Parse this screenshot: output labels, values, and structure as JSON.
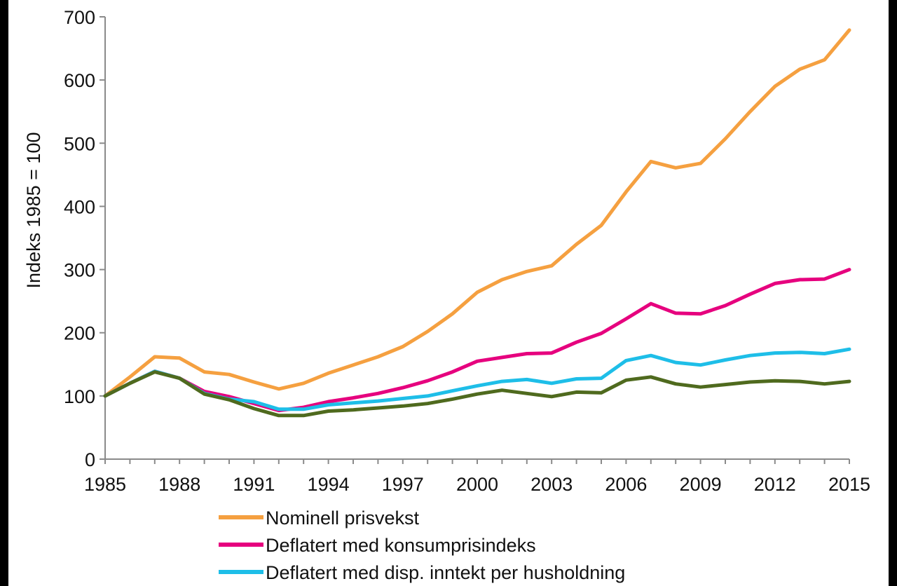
{
  "chart_data": {
    "type": "line",
    "title": "",
    "xlabel": "",
    "ylabel": "Indeks 1985 = 100",
    "ylim": [
      0,
      700
    ],
    "yticks": [
      0,
      100,
      200,
      300,
      400,
      500,
      600,
      700
    ],
    "xlim": [
      1985,
      2015
    ],
    "xticks": [
      1985,
      1988,
      1991,
      1994,
      1997,
      2000,
      2003,
      2006,
      2009,
      2012,
      2015
    ],
    "x": [
      1985,
      1986,
      1987,
      1988,
      1989,
      1990,
      1991,
      1992,
      1993,
      1994,
      1995,
      1996,
      1997,
      1998,
      1999,
      2000,
      2001,
      2002,
      2003,
      2004,
      2005,
      2006,
      2007,
      2008,
      2009,
      2010,
      2011,
      2012,
      2013,
      2014,
      2015
    ],
    "grid": false,
    "legend_position": "bottom",
    "series": [
      {
        "name": "Nominell prisvekst",
        "color": "#f5a040",
        "values": [
          100,
          130,
          162,
          160,
          138,
          134,
          122,
          111,
          120,
          136,
          149,
          162,
          178,
          202,
          230,
          264,
          284,
          297,
          306,
          340,
          370,
          423,
          471,
          461,
          468,
          507,
          550,
          590,
          617,
          632,
          679
        ]
      },
      {
        "name": "Deflatert med konsumprisindeks",
        "color": "#e6007e",
        "values": [
          100,
          120,
          139,
          128,
          107,
          99,
          88,
          77,
          82,
          91,
          97,
          104,
          113,
          124,
          138,
          155,
          161,
          167,
          168,
          185,
          199,
          222,
          246,
          231,
          230,
          243,
          261,
          278,
          284,
          285,
          300
        ]
      },
      {
        "name": "Deflatert med disp. inntekt per husholdning",
        "color": "#1ebee8",
        "values": [
          100,
          120,
          139,
          128,
          104,
          95,
          91,
          79,
          79,
          86,
          89,
          92,
          96,
          100,
          108,
          116,
          123,
          126,
          120,
          127,
          128,
          156,
          164,
          153,
          149,
          157,
          164,
          168,
          169,
          167,
          174
        ]
      },
      {
        "name": "",
        "color": "#4f6a1e",
        "values": [
          100,
          120,
          138,
          128,
          103,
          94,
          80,
          69,
          69,
          76,
          78,
          81,
          84,
          88,
          95,
          103,
          109,
          104,
          99,
          106,
          105,
          125,
          130,
          119,
          114,
          118,
          122,
          124,
          123,
          119,
          123
        ]
      }
    ]
  }
}
